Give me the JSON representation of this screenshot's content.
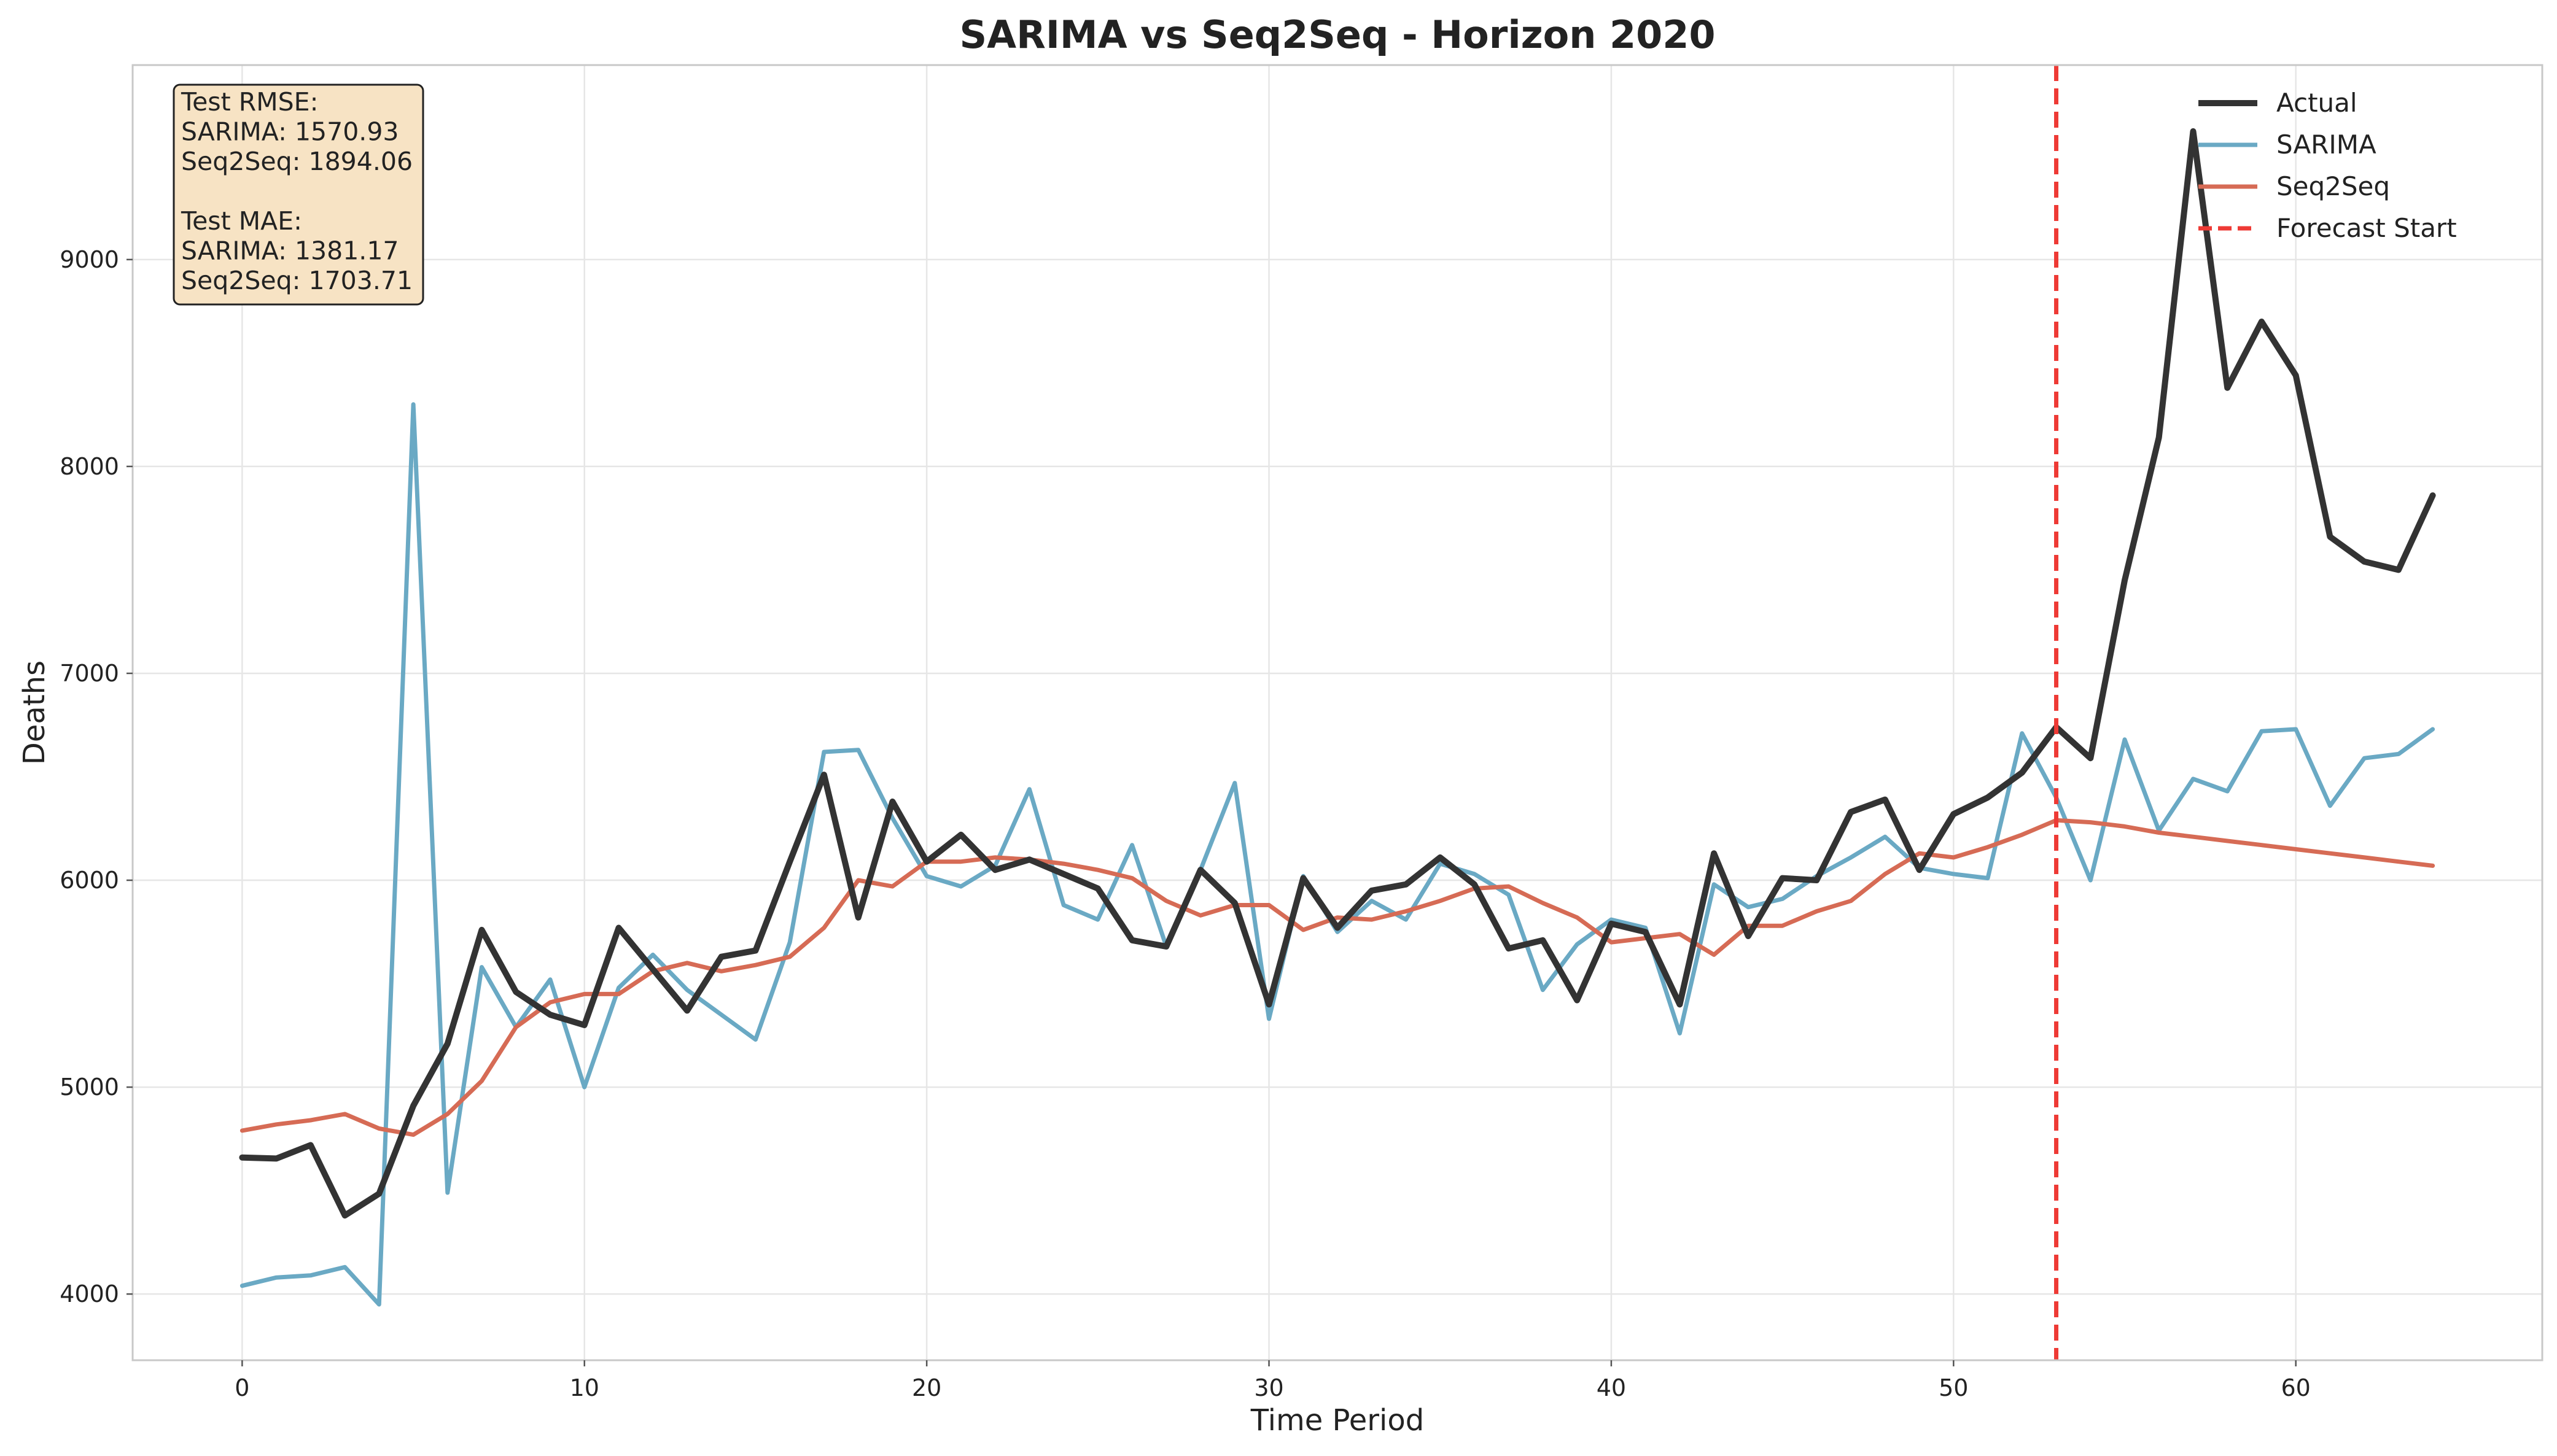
{
  "chart_data": {
    "type": "line",
    "title": "SARIMA vs Seq2Seq - Horizon 2020",
    "xlabel": "Time Period",
    "ylabel": "Deaths",
    "xlim": [
      -3.2,
      67.2
    ],
    "ylim": [
      3680,
      9940
    ],
    "xticks": [
      0,
      10,
      20,
      30,
      40,
      50,
      60
    ],
    "yticks": [
      4000,
      5000,
      6000,
      7000,
      8000,
      9000
    ],
    "grid": true,
    "legend_position": "top-right",
    "x": [
      0,
      1,
      2,
      3,
      4,
      5,
      6,
      7,
      8,
      9,
      10,
      11,
      12,
      13,
      14,
      15,
      16,
      17,
      18,
      19,
      20,
      21,
      22,
      23,
      24,
      25,
      26,
      27,
      28,
      29,
      30,
      31,
      32,
      33,
      34,
      35,
      36,
      37,
      38,
      39,
      40,
      41,
      42,
      43,
      44,
      45,
      46,
      47,
      48,
      49,
      50,
      51,
      52,
      53,
      54,
      55,
      56,
      57,
      58,
      59,
      60,
      61,
      62,
      63,
      64
    ],
    "series": [
      {
        "name": "Actual",
        "color": "#333333",
        "values": [
          4660,
          4655,
          4720,
          4380,
          4485,
          4910,
          5210,
          5760,
          5460,
          5350,
          5300,
          5770,
          5570,
          5370,
          5630,
          5660,
          6090,
          6510,
          5820,
          6380,
          6090,
          6220,
          6050,
          6100,
          6030,
          5960,
          5710,
          5680,
          6050,
          5890,
          5400,
          6010,
          5770,
          5950,
          5980,
          6110,
          5980,
          5670,
          5710,
          5420,
          5790,
          5750,
          5400,
          6130,
          5730,
          6010,
          6000,
          6330,
          6390,
          6050,
          6320,
          6400,
          6520,
          6740,
          6590,
          7450,
          8140,
          9620,
          8380,
          8700,
          8440,
          7660,
          7540,
          7500,
          7860
        ]
      },
      {
        "name": "SARIMA",
        "color": "#6aa9c4",
        "values": [
          4040,
          4080,
          4090,
          4130,
          3950,
          8300,
          4490,
          5580,
          5290,
          5520,
          5000,
          5480,
          5640,
          5470,
          5350,
          5230,
          5700,
          6620,
          6630,
          6300,
          6020,
          5970,
          6070,
          6440,
          5880,
          5810,
          6170,
          5680,
          6050,
          6470,
          5330,
          6020,
          5750,
          5900,
          5810,
          6080,
          6030,
          5930,
          5470,
          5690,
          5810,
          5770,
          5260,
          5980,
          5870,
          5910,
          6020,
          6110,
          6210,
          6060,
          6030,
          6010,
          6710,
          6400,
          6000,
          6680,
          6240,
          6490,
          6430,
          6720,
          6730,
          6360,
          6590,
          6610,
          6730
        ]
      },
      {
        "name": "Seq2Seq",
        "color": "#d66b55",
        "values": [
          4790,
          4820,
          4840,
          4870,
          4800,
          4770,
          4870,
          5030,
          5290,
          5410,
          5450,
          5450,
          5560,
          5600,
          5560,
          5590,
          5630,
          5770,
          6000,
          5970,
          6090,
          6090,
          6110,
          6100,
          6080,
          6050,
          6010,
          5900,
          5830,
          5880,
          5880,
          5760,
          5820,
          5810,
          5850,
          5900,
          5960,
          5970,
          5890,
          5820,
          5700,
          5720,
          5740,
          5640,
          5780,
          5780,
          5850,
          5900,
          6030,
          6130,
          6110,
          6160,
          6220,
          6290,
          6280,
          6260,
          6230,
          6210,
          6190,
          6170,
          6150,
          6130,
          6110,
          6090,
          6070
        ]
      }
    ],
    "forecast_start": {
      "x": 53,
      "label": "Forecast Start",
      "color": "#ee3a35"
    },
    "stats_box": {
      "lines": [
        "Test RMSE:",
        "SARIMA: 1570.93",
        "Seq2Seq: 1894.06",
        "",
        "Test MAE:",
        "SARIMA: 1381.17",
        "Seq2Seq: 1703.71"
      ],
      "background": "#f7e3c4"
    }
  }
}
